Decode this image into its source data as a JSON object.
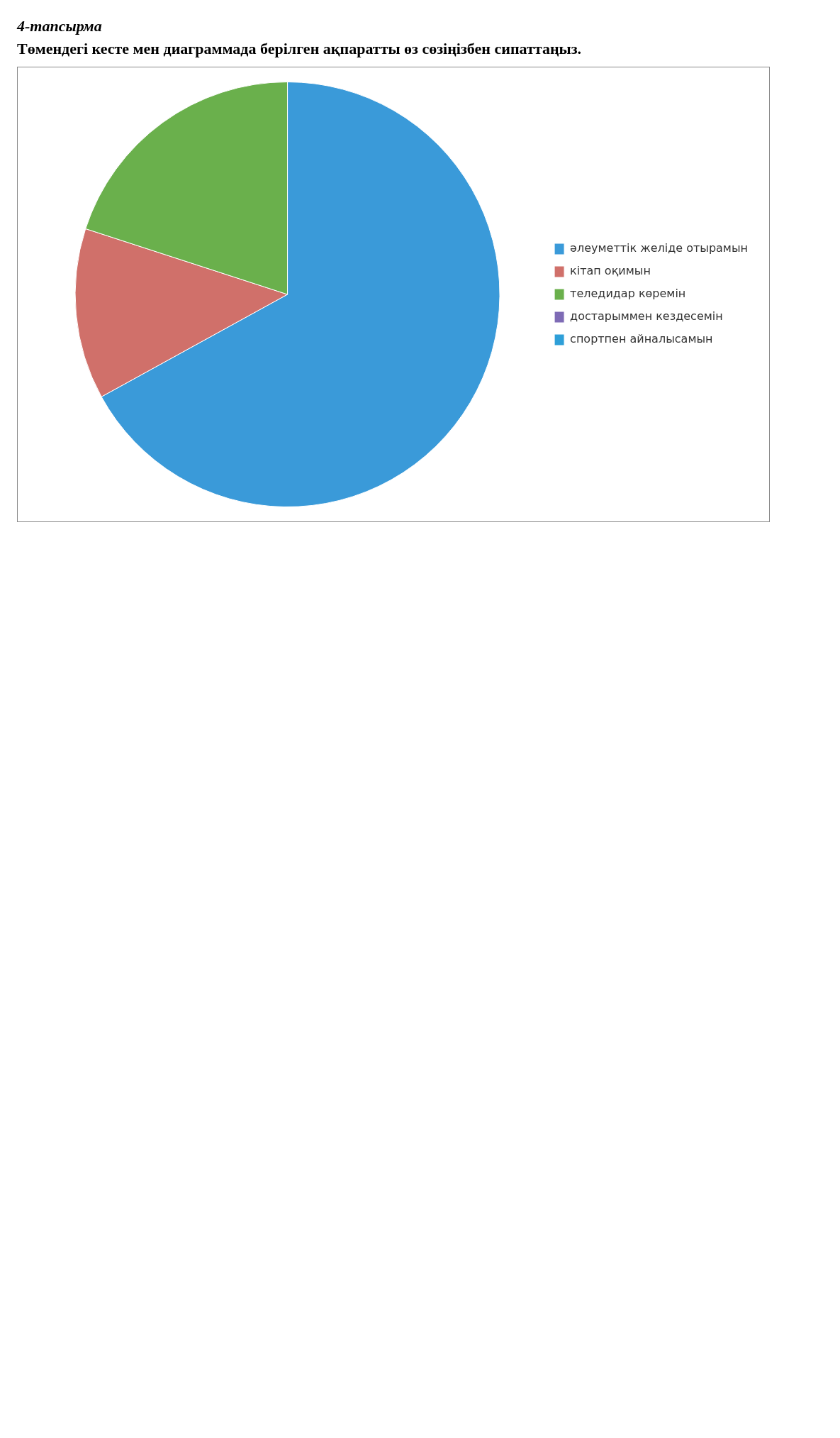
{
  "chart_data": {
    "type": "pie",
    "title": "4-тапсырма",
    "subtitle": "Төмендегі кесте мен диаграммада берілген ақпаратты өз сөзіңізбен сипаттаңыз.",
    "categories": [
      "әлеуметтік желіде отырамын",
      "кітап оқимын",
      "теледидар көремін",
      "достарыммен кездесемін",
      "спортпен айналысамын"
    ],
    "values": [
      67,
      13,
      20,
      0,
      0
    ],
    "colors": [
      "#3a9ad9",
      "#d0706a",
      "#6ab04c",
      "#7e6bb5",
      "#2e9fd8"
    ],
    "legend": "right"
  }
}
